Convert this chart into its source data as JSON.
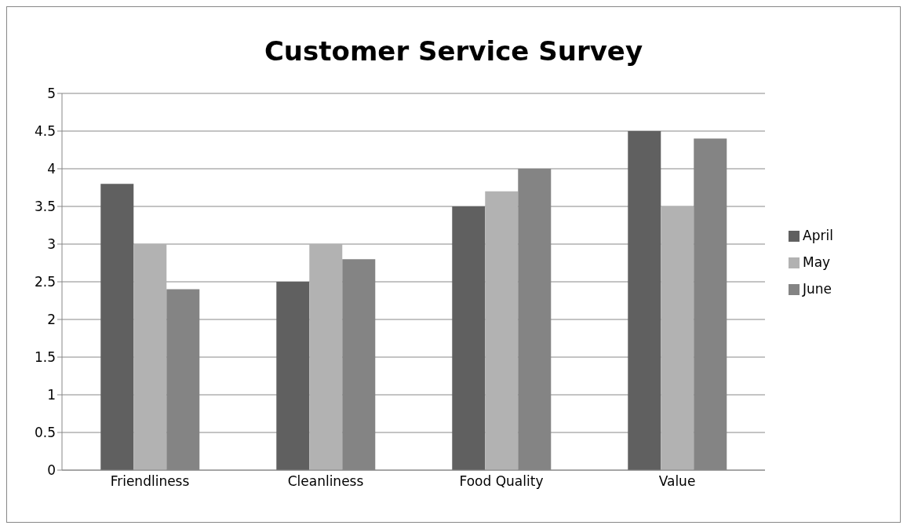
{
  "chart_data": {
    "type": "bar",
    "title": "Customer Service Survey",
    "categories": [
      "Friendliness",
      "Cleanliness",
      "Food Quality",
      "Value"
    ],
    "series": [
      {
        "name": "April",
        "color": "#606060",
        "values": [
          3.8,
          2.5,
          3.5,
          4.5
        ]
      },
      {
        "name": "May",
        "color": "#b2b2b2",
        "values": [
          3.0,
          3.0,
          3.7,
          3.5
        ]
      },
      {
        "name": "June",
        "color": "#848484",
        "values": [
          2.4,
          2.8,
          4.0,
          4.4
        ]
      }
    ],
    "ylim": [
      0,
      5
    ],
    "yticks": [
      0,
      0.5,
      1,
      1.5,
      2,
      2.5,
      3,
      3.5,
      4,
      4.5,
      5
    ],
    "grid": "y",
    "legend": "right"
  }
}
